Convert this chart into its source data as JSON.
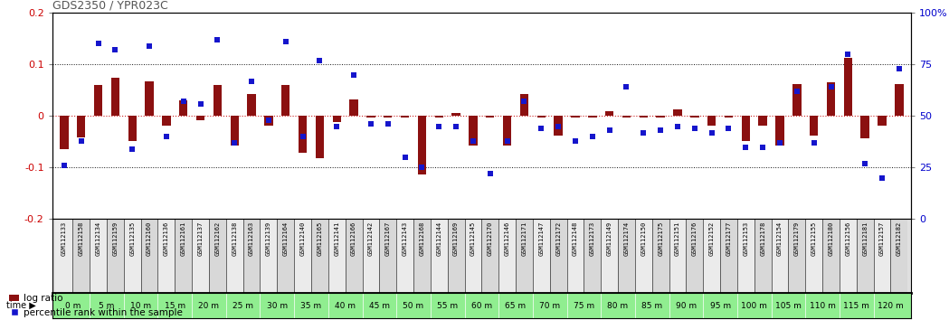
{
  "title": "GDS2350 / YPR023C",
  "samples": [
    "GSM112133",
    "GSM112158",
    "GSM112134",
    "GSM112159",
    "GSM112135",
    "GSM112160",
    "GSM112136",
    "GSM112161",
    "GSM112137",
    "GSM112162",
    "GSM112138",
    "GSM112163",
    "GSM112139",
    "GSM112164",
    "GSM112140",
    "GSM112165",
    "GSM112141",
    "GSM112166",
    "GSM112142",
    "GSM112167",
    "GSM112143",
    "GSM112168",
    "GSM112144",
    "GSM112169",
    "GSM112145",
    "GSM112170",
    "GSM112146",
    "GSM112171",
    "GSM112147",
    "GSM112172",
    "GSM112148",
    "GSM112173",
    "GSM112149",
    "GSM112174",
    "GSM112150",
    "GSM112175",
    "GSM112151",
    "GSM112176",
    "GSM112152",
    "GSM112177",
    "GSM112153",
    "GSM112178",
    "GSM112154",
    "GSM112179",
    "GSM112155",
    "GSM112180",
    "GSM112156",
    "GSM112181",
    "GSM112157",
    "GSM112182"
  ],
  "time_labels": [
    "0 m",
    "5 m",
    "10 m",
    "15 m",
    "20 m",
    "25 m",
    "30 m",
    "35 m",
    "40 m",
    "45 m",
    "50 m",
    "55 m",
    "60 m",
    "65 m",
    "70 m",
    "75 m",
    "80 m",
    "85 m",
    "90 m",
    "95 m",
    "100 m",
    "105 m",
    "110 m",
    "115 m",
    "120 m"
  ],
  "log_ratio": [
    -0.065,
    -0.042,
    0.06,
    0.075,
    -0.048,
    0.068,
    -0.018,
    0.03,
    -0.008,
    0.06,
    -0.058,
    0.042,
    -0.018,
    0.06,
    -0.072,
    -0.082,
    -0.012,
    0.032,
    -0.003,
    -0.003,
    -0.003,
    -0.113,
    -0.003,
    0.005,
    -0.058,
    -0.003,
    -0.058,
    0.042,
    -0.003,
    -0.038,
    -0.003,
    -0.003,
    0.01,
    -0.003,
    -0.003,
    -0.003,
    0.012,
    -0.003,
    -0.018,
    -0.003,
    -0.048,
    -0.018,
    -0.058,
    0.062,
    -0.038,
    0.065,
    0.112,
    -0.043,
    -0.018,
    0.062
  ],
  "percentile": [
    26,
    38,
    85,
    82,
    34,
    84,
    40,
    57,
    56,
    87,
    37,
    67,
    48,
    86,
    40,
    77,
    45,
    70,
    46,
    46,
    30,
    25,
    45,
    45,
    38,
    22,
    38,
    57,
    44,
    45,
    38,
    40,
    43,
    64,
    42,
    43,
    45,
    44,
    42,
    44,
    35,
    35,
    37,
    62,
    37,
    64,
    80,
    27,
    20,
    73
  ],
  "ylim_left": [
    -0.2,
    0.2
  ],
  "ylim_right": [
    0,
    100
  ],
  "yticks_left": [
    -0.2,
    -0.1,
    0.0,
    0.1,
    0.2
  ],
  "ytick_labels_left": [
    "-0.2",
    "-0.1",
    "0",
    "0.1",
    "0.2"
  ],
  "yticks_right": [
    0,
    25,
    50,
    75,
    100
  ],
  "ytick_labels_right": [
    "0",
    "25",
    "50",
    "75",
    "100%"
  ],
  "bar_color": "#8B1010",
  "square_color": "#1515CC",
  "zero_line_color": "#CC2222",
  "hline_color": "#111111",
  "time_bg_color": "#90EE90",
  "sample_bg_even": "#EBEBEB",
  "sample_bg_odd": "#D8D8D8",
  "legend_log_ratio": "log ratio",
  "legend_percentile": "percentile rank within the sample",
  "ylabel_left_color": "#CC0000",
  "ylabel_right_color": "#0000CC",
  "title_color": "#555555"
}
